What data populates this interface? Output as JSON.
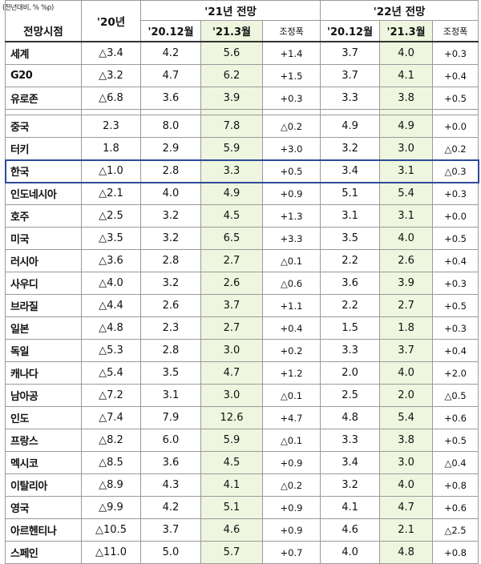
{
  "header": {
    "unit": "(전년대비, % %p)",
    "corner": "전망시점",
    "col_2020": "'20년",
    "group_2021": "'21년 전망",
    "group_2022": "'22년 전망",
    "sub_dec": "'20.12월",
    "sub_mar": "'21.3월",
    "sub_adj": "조정폭"
  },
  "group1": [
    {
      "country": "세계",
      "y20": "△3.4",
      "a_dec": "4.2",
      "a_mar": "5.6",
      "a_adj": "+1.4",
      "b_dec": "3.7",
      "b_mar": "4.0",
      "b_adj": "+0.3"
    },
    {
      "country": "G20",
      "y20": "△3.2",
      "a_dec": "4.7",
      "a_mar": "6.2",
      "a_adj": "+1.5",
      "b_dec": "3.7",
      "b_mar": "4.1",
      "b_adj": "+0.4"
    },
    {
      "country": "유로존",
      "y20": "△6.8",
      "a_dec": "3.6",
      "a_mar": "3.9",
      "a_adj": "+0.3",
      "b_dec": "3.3",
      "b_mar": "3.8",
      "b_adj": "+0.5"
    }
  ],
  "group2": [
    {
      "country": "중국",
      "y20": "2.3",
      "a_dec": "8.0",
      "a_mar": "7.8",
      "a_adj": "△0.2",
      "b_dec": "4.9",
      "b_mar": "4.9",
      "b_adj": "+0.0"
    },
    {
      "country": "터키",
      "y20": "1.8",
      "a_dec": "2.9",
      "a_mar": "5.9",
      "a_adj": "+3.0",
      "b_dec": "3.2",
      "b_mar": "3.0",
      "b_adj": "△0.2"
    },
    {
      "country": "한국",
      "y20": "△1.0",
      "a_dec": "2.8",
      "a_mar": "3.3",
      "a_adj": "+0.5",
      "b_dec": "3.4",
      "b_mar": "3.1",
      "b_adj": "△0.3",
      "highlight": true
    },
    {
      "country": "인도네시아",
      "y20": "△2.1",
      "a_dec": "4.0",
      "a_mar": "4.9",
      "a_adj": "+0.9",
      "b_dec": "5.1",
      "b_mar": "5.4",
      "b_adj": "+0.3"
    },
    {
      "country": "호주",
      "y20": "△2.5",
      "a_dec": "3.2",
      "a_mar": "4.5",
      "a_adj": "+1.3",
      "b_dec": "3.1",
      "b_mar": "3.1",
      "b_adj": "+0.0"
    },
    {
      "country": "미국",
      "y20": "△3.5",
      "a_dec": "3.2",
      "a_mar": "6.5",
      "a_adj": "+3.3",
      "b_dec": "3.5",
      "b_mar": "4.0",
      "b_adj": "+0.5"
    },
    {
      "country": "러시아",
      "y20": "△3.6",
      "a_dec": "2.8",
      "a_mar": "2.7",
      "a_adj": "△0.1",
      "b_dec": "2.2",
      "b_mar": "2.6",
      "b_adj": "+0.4"
    },
    {
      "country": "사우디",
      "y20": "△4.0",
      "a_dec": "3.2",
      "a_mar": "2.6",
      "a_adj": "△0.6",
      "b_dec": "3.6",
      "b_mar": "3.9",
      "b_adj": "+0.3"
    },
    {
      "country": "브라질",
      "y20": "△4.4",
      "a_dec": "2.6",
      "a_mar": "3.7",
      "a_adj": "+1.1",
      "b_dec": "2.2",
      "b_mar": "2.7",
      "b_adj": "+0.5"
    },
    {
      "country": "일본",
      "y20": "△4.8",
      "a_dec": "2.3",
      "a_mar": "2.7",
      "a_adj": "+0.4",
      "b_dec": "1.5",
      "b_mar": "1.8",
      "b_adj": "+0.3"
    },
    {
      "country": "독일",
      "y20": "△5.3",
      "a_dec": "2.8",
      "a_mar": "3.0",
      "a_adj": "+0.2",
      "b_dec": "3.3",
      "b_mar": "3.7",
      "b_adj": "+0.4"
    },
    {
      "country": "캐나다",
      "y20": "△5.4",
      "a_dec": "3.5",
      "a_mar": "4.7",
      "a_adj": "+1.2",
      "b_dec": "2.0",
      "b_mar": "4.0",
      "b_adj": "+2.0"
    },
    {
      "country": "남아공",
      "y20": "△7.2",
      "a_dec": "3.1",
      "a_mar": "3.0",
      "a_adj": "△0.1",
      "b_dec": "2.5",
      "b_mar": "2.0",
      "b_adj": "△0.5"
    },
    {
      "country": "인도",
      "y20": "△7.4",
      "a_dec": "7.9",
      "a_mar": "12.6",
      "a_adj": "+4.7",
      "b_dec": "4.8",
      "b_mar": "5.4",
      "b_adj": "+0.6"
    },
    {
      "country": "프랑스",
      "y20": "△8.2",
      "a_dec": "6.0",
      "a_mar": "5.9",
      "a_adj": "△0.1",
      "b_dec": "3.3",
      "b_mar": "3.8",
      "b_adj": "+0.5"
    },
    {
      "country": "멕시코",
      "y20": "△8.5",
      "a_dec": "3.6",
      "a_mar": "4.5",
      "a_adj": "+0.9",
      "b_dec": "3.4",
      "b_mar": "3.0",
      "b_adj": "△0.4"
    },
    {
      "country": "이탈리아",
      "y20": "△8.9",
      "a_dec": "4.3",
      "a_mar": "4.1",
      "a_adj": "△0.2",
      "b_dec": "3.2",
      "b_mar": "4.0",
      "b_adj": "+0.8"
    },
    {
      "country": "영국",
      "y20": "△9.9",
      "a_dec": "4.2",
      "a_mar": "5.1",
      "a_adj": "+0.9",
      "b_dec": "4.1",
      "b_mar": "4.7",
      "b_adj": "+0.6"
    },
    {
      "country": "아르헨티나",
      "y20": "△10.5",
      "a_dec": "3.7",
      "a_mar": "4.6",
      "a_adj": "+0.9",
      "b_dec": "4.6",
      "b_mar": "2.1",
      "b_adj": "△2.5"
    },
    {
      "country": "스페인",
      "y20": "△11.0",
      "a_dec": "5.0",
      "a_mar": "5.7",
      "a_adj": "+0.7",
      "b_dec": "4.0",
      "b_mar": "4.8",
      "b_adj": "+0.8"
    }
  ],
  "colors": {
    "highlight_fill": "#eef6df",
    "korea_box": "#2e4a99"
  }
}
